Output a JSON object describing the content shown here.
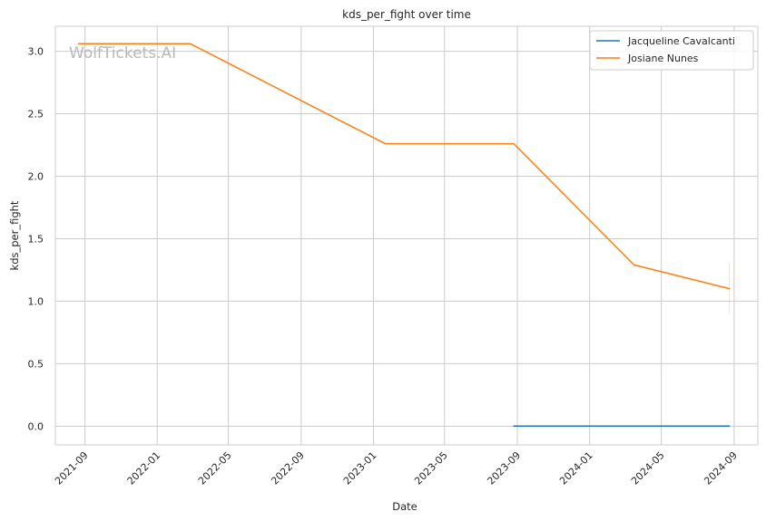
{
  "chart_data": {
    "type": "line",
    "title": "kds_per_fight over time",
    "xlabel": "Date",
    "ylabel": "kds_per_fight",
    "watermark": "WolfTickets.AI",
    "x_tick_labels": [
      "2021-09",
      "2022-01",
      "2022-05",
      "2022-09",
      "2023-01",
      "2023-05",
      "2023-09",
      "2024-01",
      "2024-05",
      "2024-09"
    ],
    "y_tick_labels": [
      "0.0",
      "0.5",
      "1.0",
      "1.5",
      "2.0",
      "2.5",
      "3.0"
    ],
    "x_ticks": [
      "2021-09-01",
      "2022-01-01",
      "2022-05-01",
      "2022-09-01",
      "2023-01-01",
      "2023-05-01",
      "2023-09-01",
      "2024-01-01",
      "2024-05-01",
      "2024-09-01"
    ],
    "y_ticks": [
      0,
      0.5,
      1.0,
      1.5,
      2.0,
      2.5,
      3.0
    ],
    "xlim": [
      "2021-07-13",
      "2024-10-11"
    ],
    "ylim": [
      -0.15,
      3.2
    ],
    "grid": true,
    "legend_position": "top-right",
    "series": [
      {
        "name": "Jacqueline Cavalcanti",
        "color": "#1f77b4",
        "x": [
          "2023-08-26",
          "2024-08-24"
        ],
        "y": [
          0.0,
          0.0
        ]
      },
      {
        "name": "Josiane Nunes",
        "color": "#ff7f0e",
        "x": [
          "2021-08-21",
          "2022-02-26",
          "2023-01-21",
          "2023-08-26",
          "2024-03-16",
          "2024-08-24"
        ],
        "y": [
          3.06,
          3.06,
          2.26,
          2.26,
          1.29,
          1.1
        ]
      }
    ]
  }
}
